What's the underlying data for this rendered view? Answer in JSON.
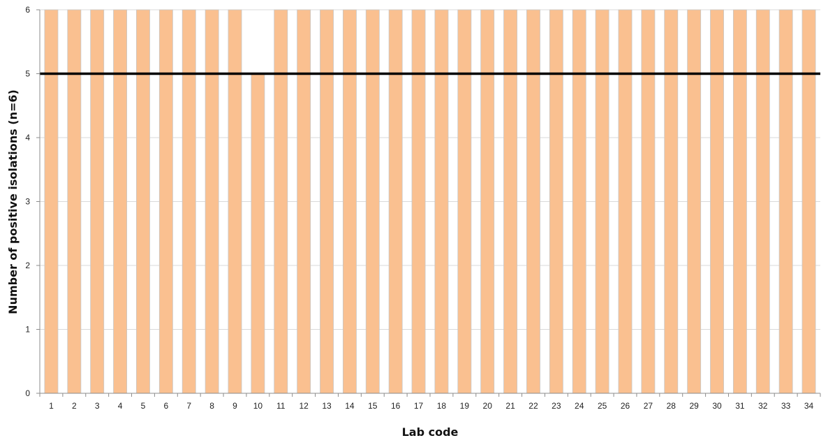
{
  "chart_data": {
    "type": "bar",
    "title": "",
    "xlabel": "Lab code",
    "ylabel": "Number of positive isolations (n=6)",
    "categories": [
      "1",
      "2",
      "3",
      "4",
      "5",
      "6",
      "7",
      "8",
      "9",
      "10",
      "11",
      "12",
      "13",
      "14",
      "15",
      "16",
      "17",
      "18",
      "19",
      "20",
      "21",
      "22",
      "23",
      "24",
      "25",
      "26",
      "27",
      "28",
      "29",
      "30",
      "31",
      "32",
      "33",
      "34"
    ],
    "values": [
      6,
      6,
      6,
      6,
      6,
      6,
      6,
      6,
      6,
      5,
      6,
      6,
      6,
      6,
      6,
      6,
      6,
      6,
      6,
      6,
      6,
      6,
      6,
      6,
      6,
      6,
      6,
      6,
      6,
      6,
      6,
      6,
      6,
      6
    ],
    "ylim": [
      0,
      6
    ],
    "yticks": [
      "0",
      "1",
      "2",
      "3",
      "4",
      "5",
      "6"
    ],
    "reference_line": 5,
    "grid": true,
    "legend": "none",
    "colors": {
      "bar": "#fac090",
      "bar_edge": "#c8c8c8",
      "reference_line": "#000000",
      "grid": "#d9d9d9",
      "axis": "#8c8c8c"
    }
  }
}
